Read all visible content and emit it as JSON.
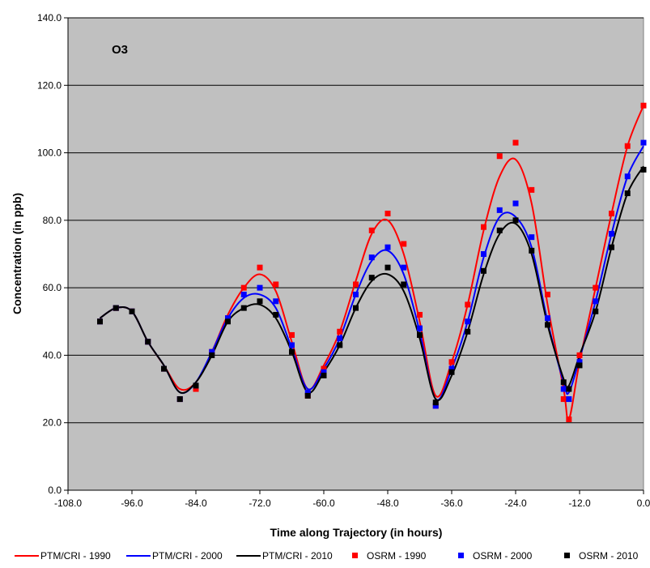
{
  "chart_data": {
    "type": "line",
    "annotation": "O3",
    "xlabel": "Time along Trajectory (in hours)",
    "ylabel": "Concentration (in ppb)",
    "xlim": [
      -108,
      0
    ],
    "ylim": [
      0,
      140
    ],
    "x_ticks": [
      "-108.0",
      "-96.0",
      "-84.0",
      "-72.0",
      "-60.0",
      "-48.0",
      "-36.0",
      "-24.0",
      "-12.0",
      "0.0"
    ],
    "y_ticks": [
      "0.0",
      "20.0",
      "40.0",
      "60.0",
      "80.0",
      "100.0",
      "120.0",
      "140.0"
    ],
    "grid": "horizontal",
    "background": "#c0c0c0",
    "legend_position": "bottom",
    "colors": {
      "1990": "#ff0000",
      "2000": "#0000ff",
      "2010": "#000000"
    },
    "series": [
      {
        "name": "PTM/CRI - 1990",
        "kind": "line",
        "color": "#ff0000",
        "x": [
          -102,
          -99,
          -96,
          -93,
          -90,
          -87,
          -84,
          -81,
          -78,
          -75,
          -72,
          -69,
          -66,
          -63,
          -60,
          -57,
          -54,
          -51,
          -48,
          -45,
          -42,
          -39,
          -36,
          -33,
          -30,
          -27,
          -24,
          -21,
          -18,
          -15,
          -14,
          -12,
          -9,
          -6,
          -3,
          0
        ],
        "y": [
          51,
          54,
          53,
          44,
          37,
          30,
          32,
          41,
          52,
          60,
          64,
          59,
          44,
          30,
          37,
          47,
          62,
          76,
          80,
          70,
          50,
          28,
          38,
          55,
          77,
          93,
          98,
          85,
          55,
          30,
          21,
          38,
          60,
          82,
          102,
          114
        ]
      },
      {
        "name": "PTM/CRI - 2000",
        "kind": "line",
        "color": "#0000ff",
        "x": [
          -102,
          -99,
          -96,
          -93,
          -90,
          -87,
          -84,
          -81,
          -78,
          -75,
          -72,
          -69,
          -66,
          -63,
          -60,
          -57,
          -54,
          -51,
          -48,
          -45,
          -42,
          -39,
          -36,
          -33,
          -30,
          -27,
          -24,
          -21,
          -18,
          -15,
          -14,
          -12,
          -9,
          -6,
          -3,
          0
        ],
        "y": [
          51,
          54,
          53,
          44,
          37,
          29,
          32,
          41,
          51,
          57,
          58,
          54,
          42,
          30,
          36,
          45,
          58,
          68,
          71,
          64,
          47,
          27,
          36,
          50,
          69,
          81,
          81,
          72,
          50,
          32,
          29,
          39,
          56,
          76,
          93,
          102
        ]
      },
      {
        "name": "PTM/CRI - 2010",
        "kind": "line",
        "color": "#000000",
        "x": [
          -102,
          -99,
          -96,
          -93,
          -90,
          -87,
          -84,
          -81,
          -78,
          -75,
          -72,
          -69,
          -66,
          -63,
          -60,
          -57,
          -54,
          -51,
          -48,
          -45,
          -42,
          -39,
          -36,
          -33,
          -30,
          -27,
          -24,
          -21,
          -18,
          -15,
          -14,
          -12,
          -9,
          -6,
          -3,
          0
        ],
        "y": [
          51,
          54,
          53,
          44,
          37,
          29,
          32,
          40,
          50,
          54,
          55,
          51,
          41,
          29,
          35,
          43,
          54,
          62,
          64,
          59,
          45,
          27,
          34,
          47,
          64,
          76,
          79,
          70,
          49,
          33,
          31,
          40,
          53,
          72,
          88,
          96
        ]
      },
      {
        "name": "OSRM - 1990",
        "kind": "points",
        "color": "#ff0000",
        "x": [
          -102,
          -99,
          -96,
          -93,
          -90,
          -87,
          -84,
          -81,
          -78,
          -75,
          -72,
          -69,
          -66,
          -63,
          -60,
          -57,
          -54,
          -51,
          -48,
          -45,
          -42,
          -39,
          -36,
          -33,
          -30,
          -27,
          -24,
          -21,
          -18,
          -15,
          -14,
          -12,
          -9,
          -6,
          -3,
          0
        ],
        "y": [
          50,
          54,
          53,
          44,
          36,
          27,
          30,
          41,
          51,
          60,
          66,
          61,
          46,
          28,
          36,
          47,
          61,
          77,
          82,
          73,
          52,
          25,
          38,
          55,
          78,
          99,
          103,
          89,
          58,
          27,
          21,
          40,
          60,
          82,
          102,
          114
        ]
      },
      {
        "name": "OSRM - 2000",
        "kind": "points",
        "color": "#0000ff",
        "x": [
          -102,
          -99,
          -96,
          -93,
          -90,
          -87,
          -84,
          -81,
          -78,
          -75,
          -72,
          -69,
          -66,
          -63,
          -60,
          -57,
          -54,
          -51,
          -48,
          -45,
          -42,
          -39,
          -36,
          -33,
          -30,
          -27,
          -24,
          -21,
          -18,
          -15,
          -14,
          -12,
          -9,
          -6,
          -3,
          0
        ],
        "y": [
          50,
          54,
          53,
          44,
          36,
          27,
          31,
          41,
          51,
          58,
          60,
          56,
          43,
          29,
          35,
          45,
          58,
          69,
          72,
          66,
          48,
          25,
          36,
          50,
          70,
          83,
          85,
          75,
          51,
          30,
          27,
          38,
          56,
          76,
          93,
          103
        ]
      },
      {
        "name": "OSRM - 2010",
        "kind": "points",
        "color": "#000000",
        "x": [
          -102,
          -99,
          -96,
          -93,
          -90,
          -87,
          -84,
          -81,
          -78,
          -75,
          -72,
          -69,
          -66,
          -63,
          -60,
          -57,
          -54,
          -51,
          -48,
          -45,
          -42,
          -39,
          -36,
          -33,
          -30,
          -27,
          -24,
          -21,
          -18,
          -15,
          -14,
          -12,
          -9,
          -6,
          -3,
          0
        ],
        "y": [
          50,
          54,
          53,
          44,
          36,
          27,
          31,
          40,
          50,
          54,
          56,
          52,
          41,
          28,
          34,
          43,
          54,
          63,
          66,
          61,
          46,
          26,
          35,
          47,
          65,
          77,
          80,
          71,
          49,
          32,
          30,
          37,
          53,
          72,
          88,
          95
        ]
      }
    ]
  }
}
